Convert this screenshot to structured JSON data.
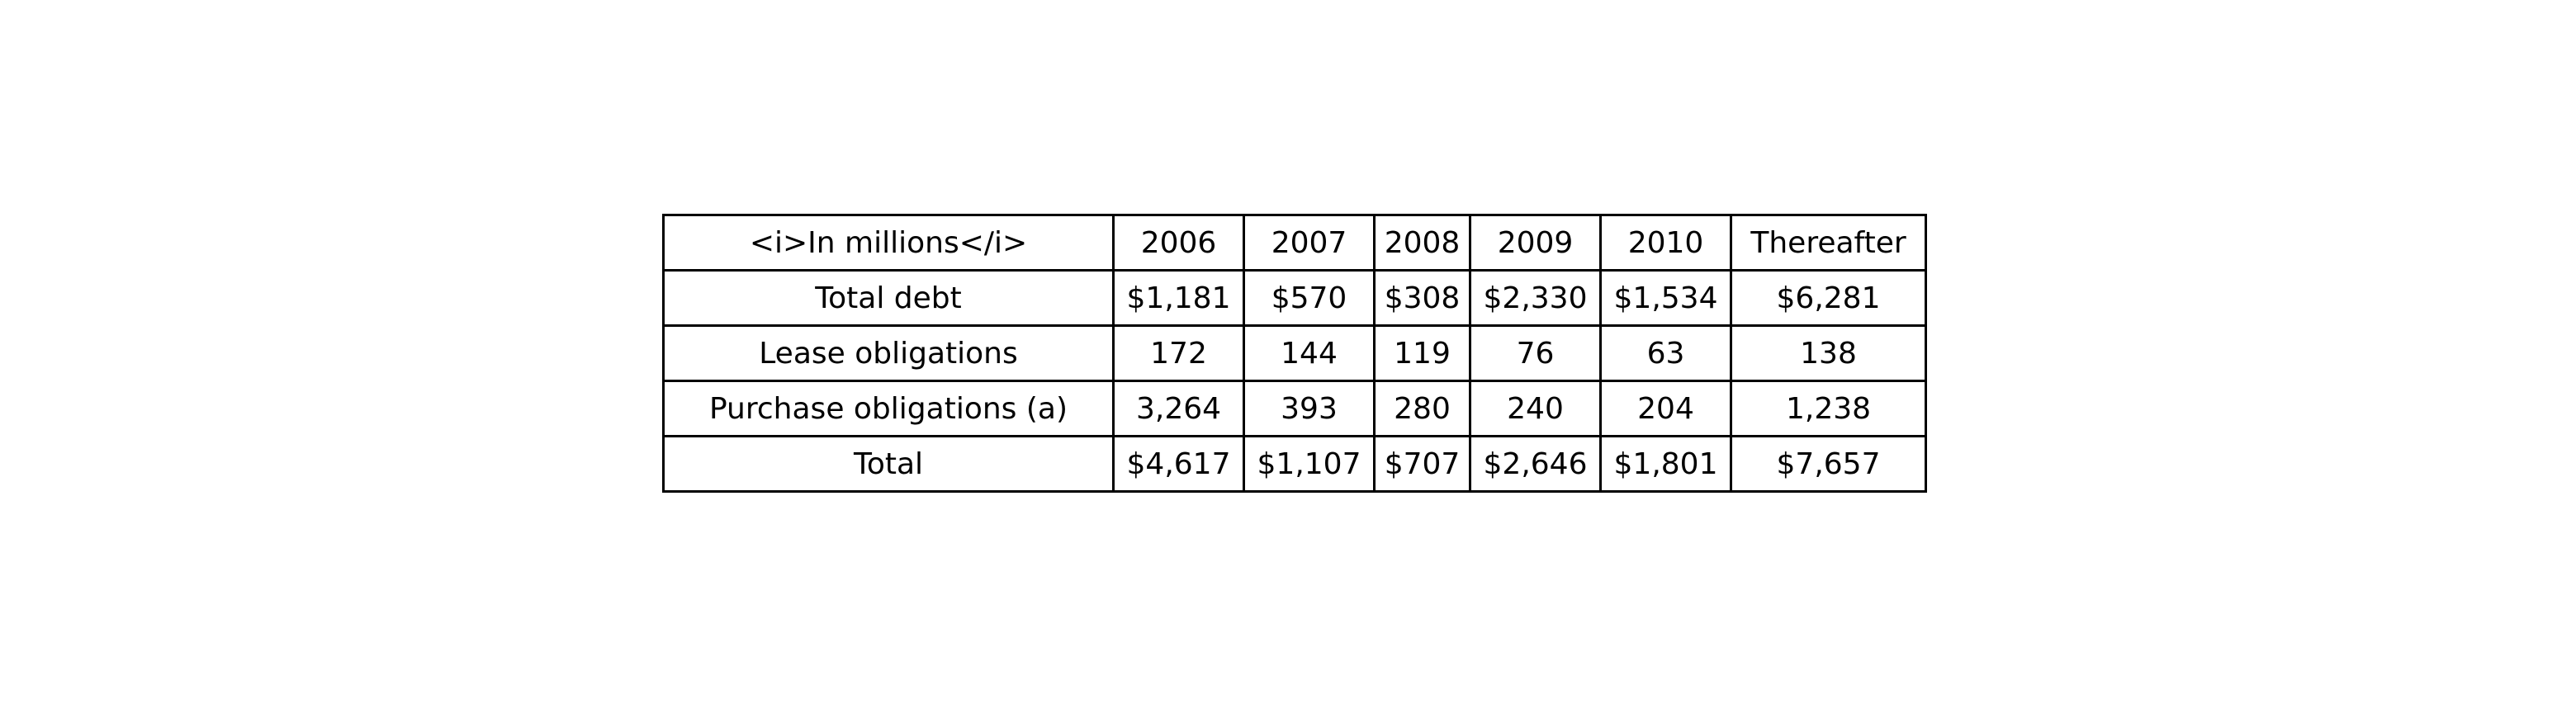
{
  "chart_data": {
    "type": "table",
    "columns": [
      "<i>In millions</i>",
      "2006",
      "2007",
      "2008",
      "2009",
      "2010",
      "Thereafter"
    ],
    "rows": [
      [
        "Total debt",
        "$1,181",
        "$570",
        "$308",
        "$2,330",
        "$1,534",
        "$6,281"
      ],
      [
        "Lease obligations",
        "172",
        "144",
        "119",
        "76",
        "63",
        "138"
      ],
      [
        "Purchase obligations (a)",
        "3,264",
        "393",
        "280",
        "240",
        "204",
        "1,238"
      ],
      [
        "Total",
        "$4,617",
        "$1,107",
        "$707",
        "$2,646",
        "$1,801",
        "$7,657"
      ]
    ]
  }
}
